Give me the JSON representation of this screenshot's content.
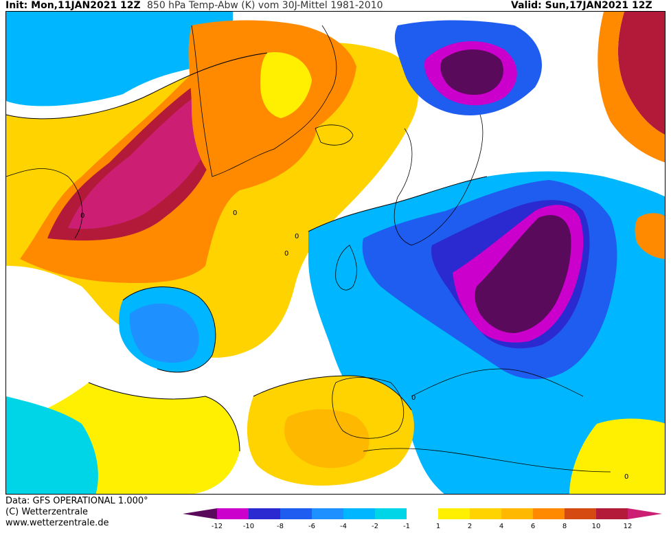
{
  "header": {
    "init_text": "Init: Mon,11JAN2021 12Z",
    "title_text": "850 hPa Temp-Abw (K) vom 30J-Mittel 1981-2010",
    "valid_text": "Valid: Sun,17JAN2021 12Z"
  },
  "footer": {
    "line1": "Data: GFS OPERATIONAL 1.000°",
    "line2": "(C) Wetterzentrale",
    "line3": "www.wetterzentrale.de"
  },
  "legend": {
    "tick_labels": [
      "-12",
      "-10",
      "-8",
      "-6",
      "-4",
      "-2",
      "-1",
      "1",
      "2",
      "4",
      "6",
      "8",
      "10",
      "12"
    ],
    "colors": [
      "#5a0a5a",
      "#cc00cc",
      "#2a2ad0",
      "#1f5cf0",
      "#1e90ff",
      "#00b7ff",
      "#00d5e8",
      "#ffffff",
      "#ffef00",
      "#ffd300",
      "#ffb800",
      "#ff8a00",
      "#d44a10",
      "#b31a3a",
      "#cc1f74"
    ]
  },
  "map": {
    "contour_labels": [
      "0",
      "0",
      "0",
      "0",
      "0",
      "0"
    ]
  }
}
